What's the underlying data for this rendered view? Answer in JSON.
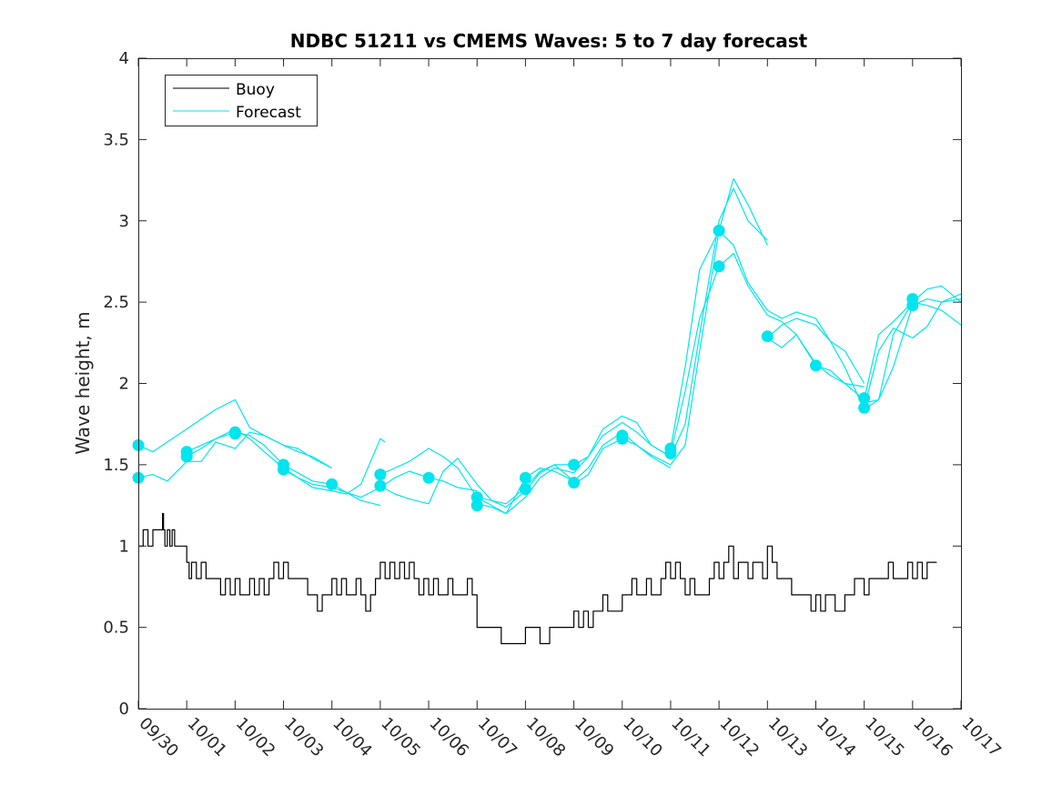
{
  "chart_data": {
    "type": "line",
    "title": "NDBC 51211 vs CMEMS Waves: 5 to 7 day forecast",
    "xlabel": "",
    "ylabel": "Wave height, m",
    "xlim": [
      0,
      17
    ],
    "ylim": [
      0,
      4
    ],
    "yticks": [
      0,
      0.5,
      1,
      1.5,
      2,
      2.5,
      3,
      3.5,
      4
    ],
    "ytick_labels": [
      "0",
      "0.5",
      "1",
      "1.5",
      "2",
      "2.5",
      "3",
      "3.5",
      "4"
    ],
    "xticks": [
      0,
      1,
      2,
      3,
      4,
      5,
      6,
      7,
      8,
      9,
      10,
      11,
      12,
      13,
      14,
      15,
      16,
      17
    ],
    "xtick_labels": [
      "09/30",
      "10/01",
      "10/02",
      "10/03",
      "10/04",
      "10/05",
      "10/06",
      "10/07",
      "10/08",
      "10/09",
      "10/10",
      "10/11",
      "10/12",
      "10/13",
      "10/14",
      "10/15",
      "10/16",
      "10/17"
    ],
    "legend": {
      "location": "top-left",
      "entries": [
        {
          "label": "Buoy",
          "color": "#000000"
        },
        {
          "label": "Forecast",
          "color": "#00e5ee"
        }
      ]
    },
    "colors": {
      "buoy": "#000000",
      "forecast": "#00e5ee"
    },
    "series": [
      {
        "name": "Buoy",
        "style": "step",
        "x": [
          0,
          0.1,
          0.2,
          0.3,
          0.5,
          0.52,
          0.55,
          0.6,
          0.65,
          0.7,
          0.75,
          0.8,
          0.9,
          1.0,
          1.05,
          1.1,
          1.2,
          1.3,
          1.4,
          1.5,
          1.6,
          1.7,
          1.8,
          1.9,
          2.0,
          2.1,
          2.2,
          2.3,
          2.4,
          2.5,
          2.6,
          2.7,
          2.8,
          2.9,
          3.0,
          3.1,
          3.2,
          3.3,
          3.4,
          3.5,
          3.6,
          3.7,
          3.8,
          3.9,
          4.0,
          4.1,
          4.2,
          4.3,
          4.4,
          4.5,
          4.6,
          4.7,
          4.8,
          4.9,
          5.0,
          5.1,
          5.2,
          5.3,
          5.4,
          5.5,
          5.6,
          5.7,
          5.8,
          5.9,
          6.0,
          6.1,
          6.2,
          6.3,
          6.4,
          6.5,
          6.6,
          6.7,
          6.8,
          6.9,
          7.0,
          7.5,
          7.9,
          8.0,
          8.3,
          8.4,
          8.5,
          8.6,
          8.7,
          8.8,
          8.9,
          9.0,
          9.1,
          9.2,
          9.3,
          9.4,
          9.5,
          9.6,
          9.7,
          9.8,
          9.9,
          10.0,
          10.1,
          10.2,
          10.3,
          10.4,
          10.5,
          10.6,
          10.7,
          10.8,
          10.9,
          11.0,
          11.1,
          11.2,
          11.3,
          11.4,
          11.5,
          11.6,
          11.7,
          11.8,
          11.9,
          12.0,
          12.1,
          12.2,
          12.3,
          12.4,
          12.5,
          12.6,
          12.7,
          12.8,
          12.9,
          13.0,
          13.1,
          13.2,
          13.3,
          13.4,
          13.5,
          13.6,
          13.7,
          13.8,
          13.9,
          14.0,
          14.1,
          14.2,
          14.3,
          14.4,
          14.5,
          14.6,
          14.7,
          14.8,
          14.9,
          15.0,
          15.1,
          15.2,
          15.3,
          15.4,
          15.5,
          15.6,
          15.7,
          15.8,
          15.9,
          16.0,
          16.1,
          16.2,
          16.3,
          16.5
        ],
        "y": [
          1.0,
          1.1,
          1.0,
          1.1,
          1.2,
          1.1,
          1.0,
          1.1,
          1.0,
          1.1,
          1.0,
          1.0,
          1.0,
          0.9,
          0.8,
          0.9,
          0.8,
          0.9,
          0.8,
          0.8,
          0.8,
          0.7,
          0.8,
          0.7,
          0.8,
          0.7,
          0.7,
          0.8,
          0.7,
          0.8,
          0.7,
          0.8,
          0.9,
          0.8,
          0.9,
          0.8,
          0.8,
          0.8,
          0.8,
          0.7,
          0.7,
          0.6,
          0.7,
          0.7,
          0.8,
          0.7,
          0.8,
          0.7,
          0.7,
          0.8,
          0.7,
          0.6,
          0.7,
          0.8,
          0.9,
          0.8,
          0.9,
          0.8,
          0.9,
          0.8,
          0.9,
          0.8,
          0.7,
          0.8,
          0.7,
          0.8,
          0.7,
          0.7,
          0.8,
          0.7,
          0.7,
          0.7,
          0.8,
          0.7,
          0.5,
          0.4,
          0.4,
          0.5,
          0.4,
          0.4,
          0.5,
          0.5,
          0.5,
          0.5,
          0.5,
          0.6,
          0.5,
          0.6,
          0.5,
          0.6,
          0.6,
          0.7,
          0.6,
          0.6,
          0.6,
          0.7,
          0.7,
          0.8,
          0.7,
          0.7,
          0.8,
          0.7,
          0.7,
          0.8,
          0.9,
          0.8,
          0.9,
          0.8,
          0.7,
          0.8,
          0.7,
          0.7,
          0.7,
          0.8,
          0.9,
          0.8,
          0.9,
          1.0,
          0.8,
          0.9,
          0.9,
          0.8,
          0.9,
          0.9,
          0.8,
          1.0,
          0.9,
          0.8,
          0.8,
          0.8,
          0.7,
          0.7,
          0.7,
          0.7,
          0.6,
          0.7,
          0.6,
          0.7,
          0.7,
          0.6,
          0.6,
          0.7,
          0.7,
          0.8,
          0.8,
          0.7,
          0.8,
          0.8,
          0.8,
          0.8,
          0.9,
          0.8,
          0.8,
          0.8,
          0.9,
          0.8,
          0.9,
          0.8,
          0.9,
          0.9
        ]
      },
      {
        "name": "Forecast 1",
        "x": [
          0,
          0.3,
          0.6,
          1,
          1.3,
          1.6,
          2,
          2.3,
          2.6,
          3,
          3.3,
          3.6,
          4
        ],
        "y": [
          1.62,
          1.58,
          1.64,
          1.72,
          1.78,
          1.84,
          1.9,
          1.73,
          1.68,
          1.62,
          1.58,
          1.55,
          1.48
        ]
      },
      {
        "name": "Forecast 2",
        "x": [
          0,
          0.3,
          0.6,
          1,
          1.3,
          1.6,
          2,
          2.3,
          2.6,
          3,
          3.3,
          3.6,
          4
        ],
        "y": [
          1.42,
          1.44,
          1.4,
          1.52,
          1.52,
          1.64,
          1.6,
          1.7,
          1.68,
          1.62,
          1.6,
          1.54,
          1.48
        ]
      },
      {
        "name": "Forecast 3",
        "x": [
          1,
          1.3,
          1.6,
          2,
          2.3,
          2.6,
          3,
          3.3,
          3.6,
          4,
          4.3,
          4.6,
          5
        ],
        "y": [
          1.55,
          1.6,
          1.66,
          1.7,
          1.68,
          1.62,
          1.5,
          1.45,
          1.4,
          1.38,
          1.33,
          1.28,
          1.25
        ]
      },
      {
        "name": "Forecast 4",
        "x": [
          1,
          1.3,
          1.6,
          2,
          2.3,
          2.6,
          3,
          3.3,
          3.6,
          4,
          4.3,
          4.6,
          5,
          5.1
        ],
        "y": [
          1.58,
          1.62,
          1.66,
          1.72,
          1.66,
          1.58,
          1.48,
          1.42,
          1.36,
          1.34,
          1.32,
          1.38,
          1.66,
          1.64
        ]
      },
      {
        "name": "Forecast 5",
        "x": [
          3,
          3.3,
          3.6,
          4,
          4.3,
          4.6,
          5,
          5.3,
          5.6,
          6,
          6.3,
          6.6,
          7
        ],
        "y": [
          1.47,
          1.42,
          1.38,
          1.36,
          1.33,
          1.3,
          1.36,
          1.42,
          1.46,
          1.42,
          1.4,
          1.36,
          1.34
        ]
      },
      {
        "name": "Forecast 6",
        "x": [
          5,
          5.3,
          5.6,
          6,
          6.3,
          6.6,
          7,
          7.3,
          7.6,
          8,
          8.3,
          8.6,
          9
        ],
        "y": [
          1.44,
          1.48,
          1.52,
          1.6,
          1.55,
          1.48,
          1.3,
          1.25,
          1.2,
          1.42,
          1.48,
          1.46,
          1.4
        ]
      },
      {
        "name": "Forecast 7",
        "x": [
          5,
          5.3,
          5.6,
          6,
          6.3,
          6.6,
          7,
          7.3,
          7.6,
          8,
          8.3,
          8.6,
          9
        ],
        "y": [
          1.37,
          1.32,
          1.29,
          1.26,
          1.46,
          1.54,
          1.38,
          1.28,
          1.24,
          1.34,
          1.45,
          1.5,
          1.5
        ]
      },
      {
        "name": "Forecast 8",
        "x": [
          7,
          7.3,
          7.6,
          8,
          8.3,
          8.6,
          9,
          9.3,
          9.6,
          10,
          10.3,
          10.6,
          11
        ],
        "y": [
          1.26,
          1.24,
          1.2,
          1.3,
          1.42,
          1.48,
          1.45,
          1.55,
          1.72,
          1.8,
          1.76,
          1.62,
          1.55
        ]
      },
      {
        "name": "Forecast 9",
        "x": [
          7,
          7.3,
          7.6,
          8,
          8.3,
          8.6,
          9,
          9.3,
          9.6,
          10,
          10.3,
          10.6,
          11
        ],
        "y": [
          1.3,
          1.28,
          1.26,
          1.36,
          1.46,
          1.5,
          1.4,
          1.48,
          1.62,
          1.7,
          1.62,
          1.55,
          1.48
        ]
      },
      {
        "name": "Forecast 10",
        "x": [
          9,
          9.3,
          9.6,
          10,
          10.3,
          10.6,
          11,
          11.3,
          11.6,
          12,
          12.3,
          12.6,
          13
        ],
        "y": [
          1.38,
          1.44,
          1.6,
          1.66,
          1.62,
          1.56,
          1.5,
          1.62,
          2.2,
          2.94,
          3.26,
          3.1,
          2.85
        ]
      },
      {
        "name": "Forecast 11",
        "x": [
          9,
          9.3,
          9.6,
          10,
          10.3,
          10.6,
          11,
          11.3,
          11.6,
          12,
          12.3,
          12.6,
          13
        ],
        "y": [
          1.5,
          1.55,
          1.68,
          1.76,
          1.7,
          1.62,
          1.55,
          1.75,
          2.3,
          3.0,
          3.2,
          3.0,
          2.88
        ]
      },
      {
        "name": "Forecast 12",
        "x": [
          11,
          11.3,
          11.6,
          12,
          12.3,
          12.6,
          13,
          13.3,
          13.6,
          14,
          14.3,
          14.6,
          15
        ],
        "y": [
          1.57,
          1.95,
          2.4,
          2.72,
          2.8,
          2.6,
          2.42,
          2.38,
          2.3,
          2.12,
          2.05,
          2.0,
          1.98
        ]
      },
      {
        "name": "Forecast 13",
        "x": [
          11,
          11.3,
          11.6,
          12,
          12.3,
          12.6,
          13,
          13.3,
          13.6,
          14,
          14.3,
          14.6,
          15
        ],
        "y": [
          1.6,
          2.1,
          2.7,
          2.94,
          2.85,
          2.62,
          2.45,
          2.4,
          2.44,
          2.4,
          2.26,
          2.2,
          2.0
        ]
      },
      {
        "name": "Forecast 14",
        "x": [
          13,
          13.3,
          13.6,
          14,
          14.3,
          14.6,
          15,
          15.3,
          15.6,
          16,
          16.3,
          16.6,
          17
        ],
        "y": [
          2.28,
          2.22,
          2.3,
          2.11,
          2.08,
          2.0,
          1.9,
          2.3,
          2.38,
          2.5,
          2.58,
          2.6,
          2.5
        ]
      },
      {
        "name": "Forecast 15",
        "x": [
          13,
          13.3,
          13.6,
          14,
          14.3,
          14.6,
          15,
          15.3,
          15.6,
          16,
          16.3,
          16.6,
          17
        ],
        "y": [
          2.28,
          2.36,
          2.4,
          2.36,
          2.26,
          2.1,
          1.84,
          1.9,
          2.1,
          2.48,
          2.52,
          2.5,
          2.55
        ]
      },
      {
        "name": "Forecast 16",
        "x": [
          15,
          15.3,
          15.6,
          16,
          16.3,
          16.6,
          17
        ],
        "y": [
          1.88,
          1.9,
          2.3,
          2.5,
          2.48,
          2.45,
          2.36
        ]
      },
      {
        "name": "Forecast 17",
        "x": [
          15,
          15.3,
          15.6,
          16,
          16.3,
          16.6,
          17
        ],
        "y": [
          1.85,
          2.2,
          2.34,
          2.28,
          2.35,
          2.5,
          2.52
        ]
      }
    ],
    "markers": {
      "name": "Forecast start",
      "x": [
        0,
        0,
        1,
        1,
        2,
        2,
        3,
        3,
        4,
        5,
        5,
        6,
        7,
        7,
        8,
        8,
        9,
        9,
        10,
        10,
        11,
        11,
        12,
        12,
        13,
        14,
        15,
        15,
        16,
        16
      ],
      "y": [
        1.62,
        1.42,
        1.58,
        1.55,
        1.7,
        1.69,
        1.5,
        1.47,
        1.38,
        1.44,
        1.37,
        1.42,
        1.3,
        1.25,
        1.42,
        1.35,
        1.5,
        1.39,
        1.68,
        1.66,
        1.6,
        1.57,
        2.94,
        2.72,
        2.29,
        2.11,
        1.91,
        1.85,
        2.52,
        2.48
      ]
    }
  }
}
